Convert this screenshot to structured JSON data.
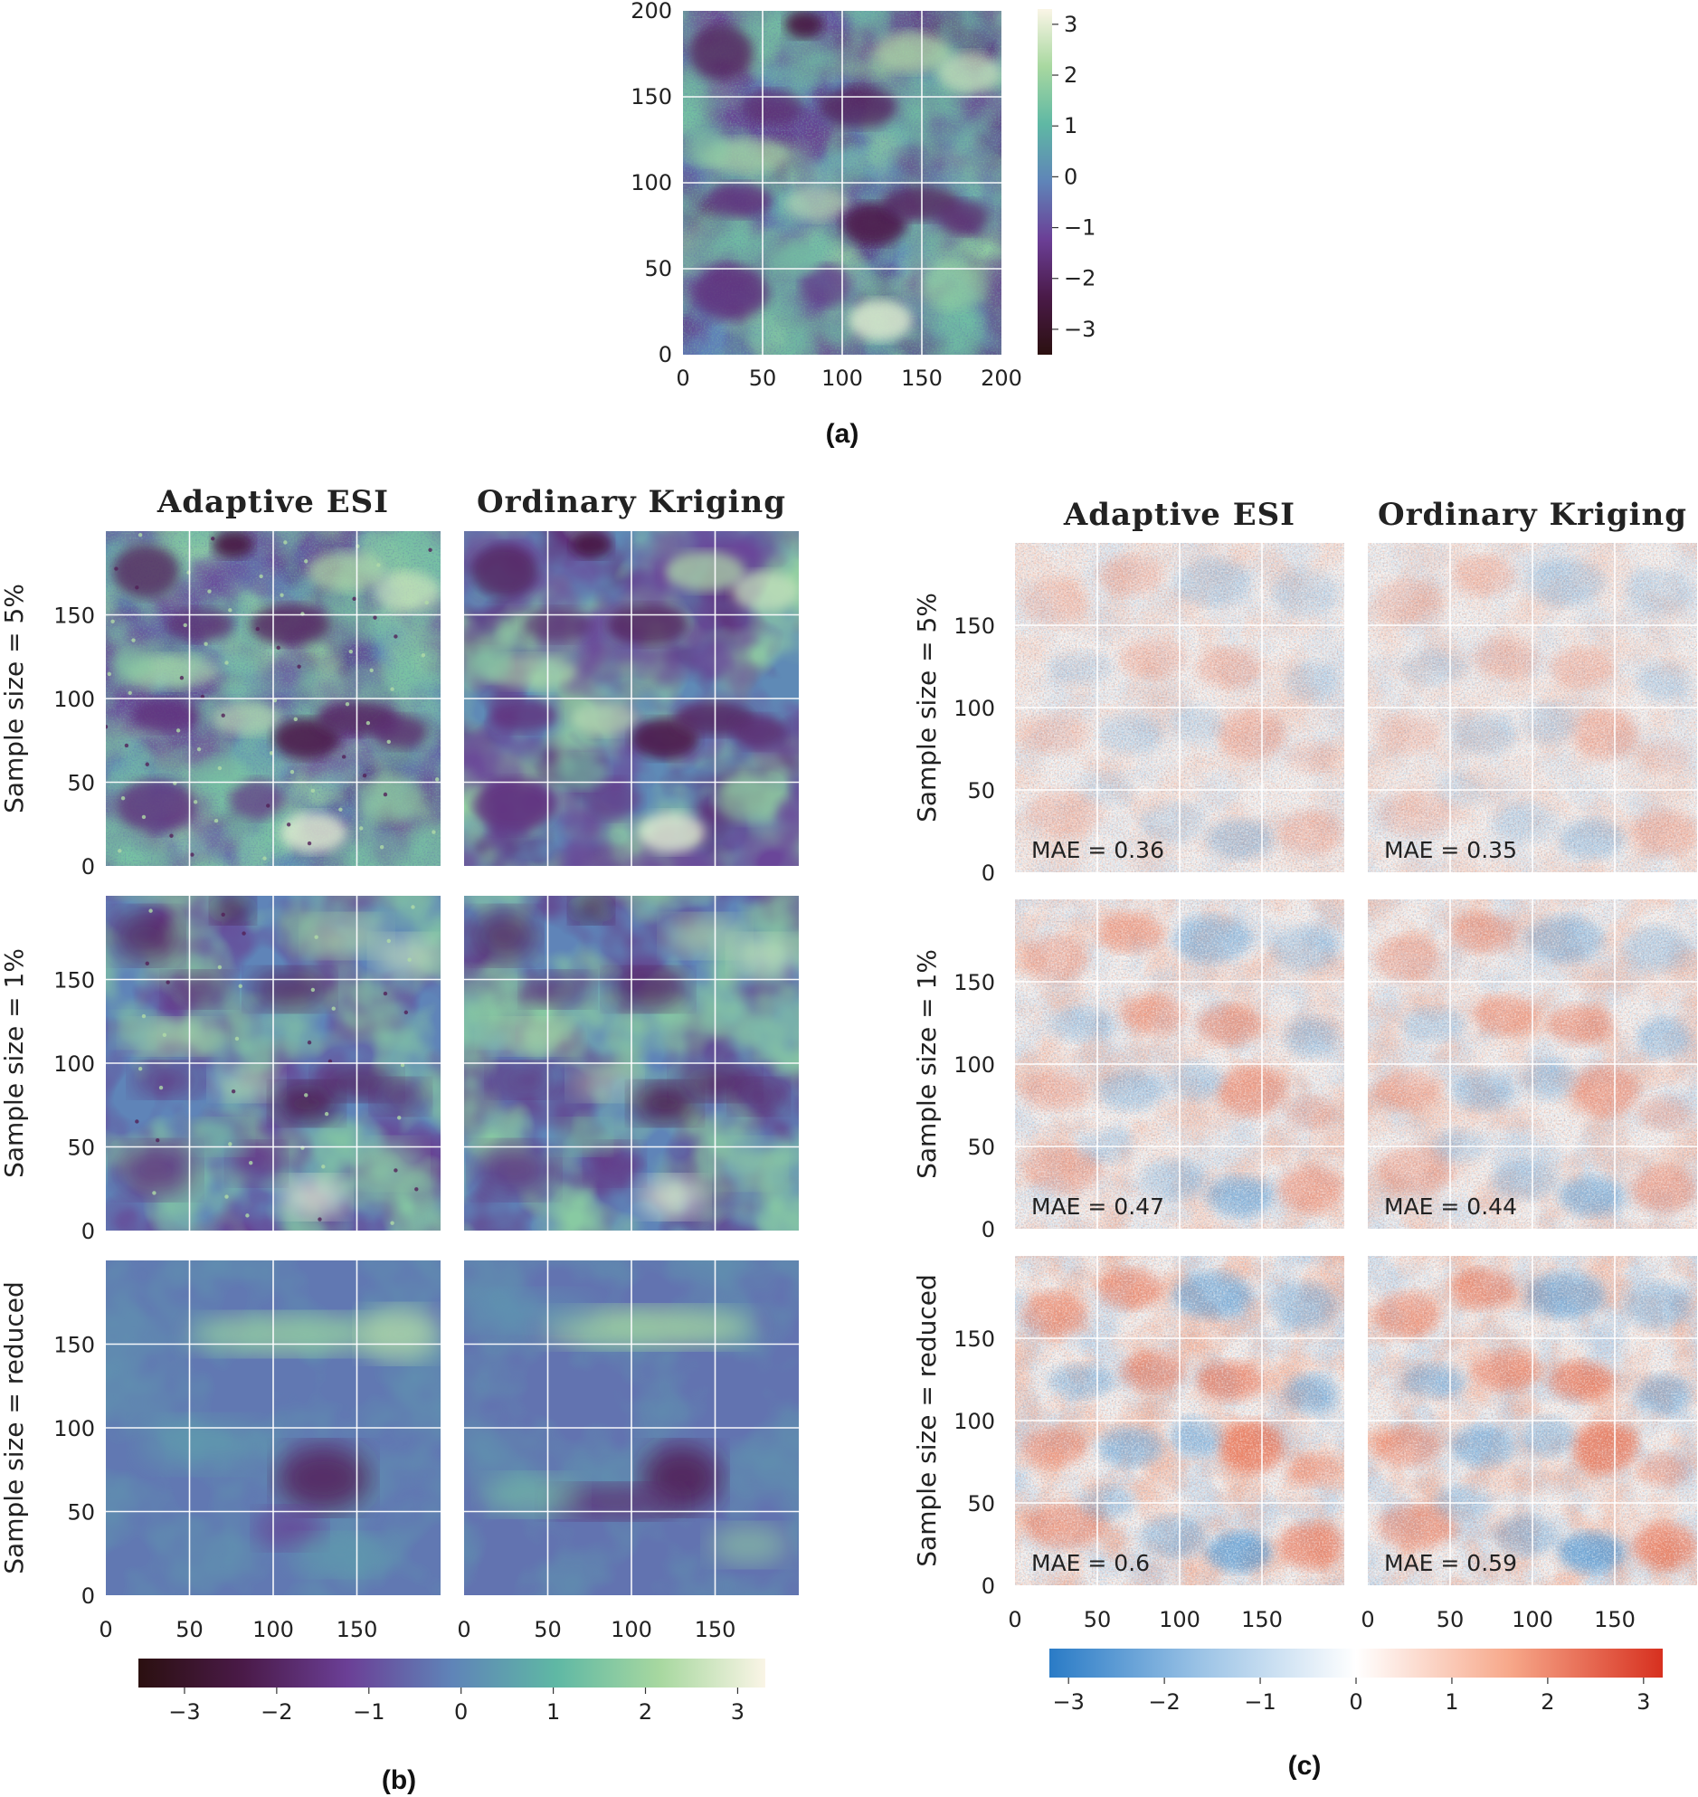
{
  "chart_data": [
    {
      "id": "a",
      "type": "heatmap",
      "label": "(a)",
      "title": "",
      "x_ticks": [
        "0",
        "50",
        "100",
        "150",
        "200"
      ],
      "y_ticks": [
        "0",
        "50",
        "100",
        "150",
        "200"
      ],
      "xlim": [
        0,
        200
      ],
      "ylim": [
        0,
        200
      ],
      "grid": true,
      "colormap": "spectral-like (dark brown → purple → blue → green → cream)",
      "colorbar": {
        "ticks": [
          "3",
          "2",
          "1",
          "0",
          "−1",
          "−2",
          "−3"
        ],
        "range": [
          -3.5,
          3.3
        ],
        "orientation": "vertical"
      }
    },
    {
      "id": "b",
      "type": "heatmap",
      "label": "(b)",
      "columns": [
        "Adaptive ESI",
        "Ordinary Kriging"
      ],
      "rows": [
        "Sample size = 5%",
        "Sample size = 1%",
        "Sample size = reduced"
      ],
      "x_ticks": [
        "0",
        "50",
        "100",
        "150"
      ],
      "y_ticks": [
        "0",
        "50",
        "100",
        "150"
      ],
      "xlim": [
        0,
        200
      ],
      "ylim": [
        0,
        200
      ],
      "grid": true,
      "colorbar": {
        "ticks": [
          "−3",
          "−2",
          "−1",
          "0",
          "1",
          "2",
          "3"
        ],
        "range": [
          -3.5,
          3.3
        ],
        "orientation": "horizontal"
      }
    },
    {
      "id": "c",
      "type": "heatmap",
      "label": "(c)",
      "columns": [
        "Adaptive ESI",
        "Ordinary Kriging"
      ],
      "rows": [
        "Sample size = 5%",
        "Sample size = 1%",
        "Sample size = reduced"
      ],
      "mae": [
        [
          "MAE = 0.36",
          "MAE = 0.35"
        ],
        [
          "MAE = 0.47",
          "MAE = 0.44"
        ],
        [
          "MAE = 0.6",
          "MAE = 0.59"
        ]
      ],
      "x_ticks": [
        "0",
        "50",
        "100",
        "150"
      ],
      "y_ticks": [
        "0",
        "50",
        "100",
        "150"
      ],
      "xlim": [
        0,
        200
      ],
      "ylim": [
        0,
        200
      ],
      "grid": true,
      "colormap": "diverging (blue → white → red)",
      "colorbar": {
        "ticks": [
          "−3",
          "−2",
          "−1",
          "0",
          "1",
          "2",
          "3"
        ],
        "range": [
          -3.2,
          3.2
        ],
        "orientation": "horizontal"
      }
    }
  ],
  "colors": {
    "spectral_stops": [
      "#2b1010",
      "#4a1a48",
      "#6b3f96",
      "#5f84b8",
      "#5fb8a4",
      "#a8d8a0",
      "#faf5e6"
    ],
    "diverging_stops": [
      "#2a7bc6",
      "#9dc4e6",
      "#ffffff",
      "#f7a88a",
      "#d7301f"
    ]
  }
}
